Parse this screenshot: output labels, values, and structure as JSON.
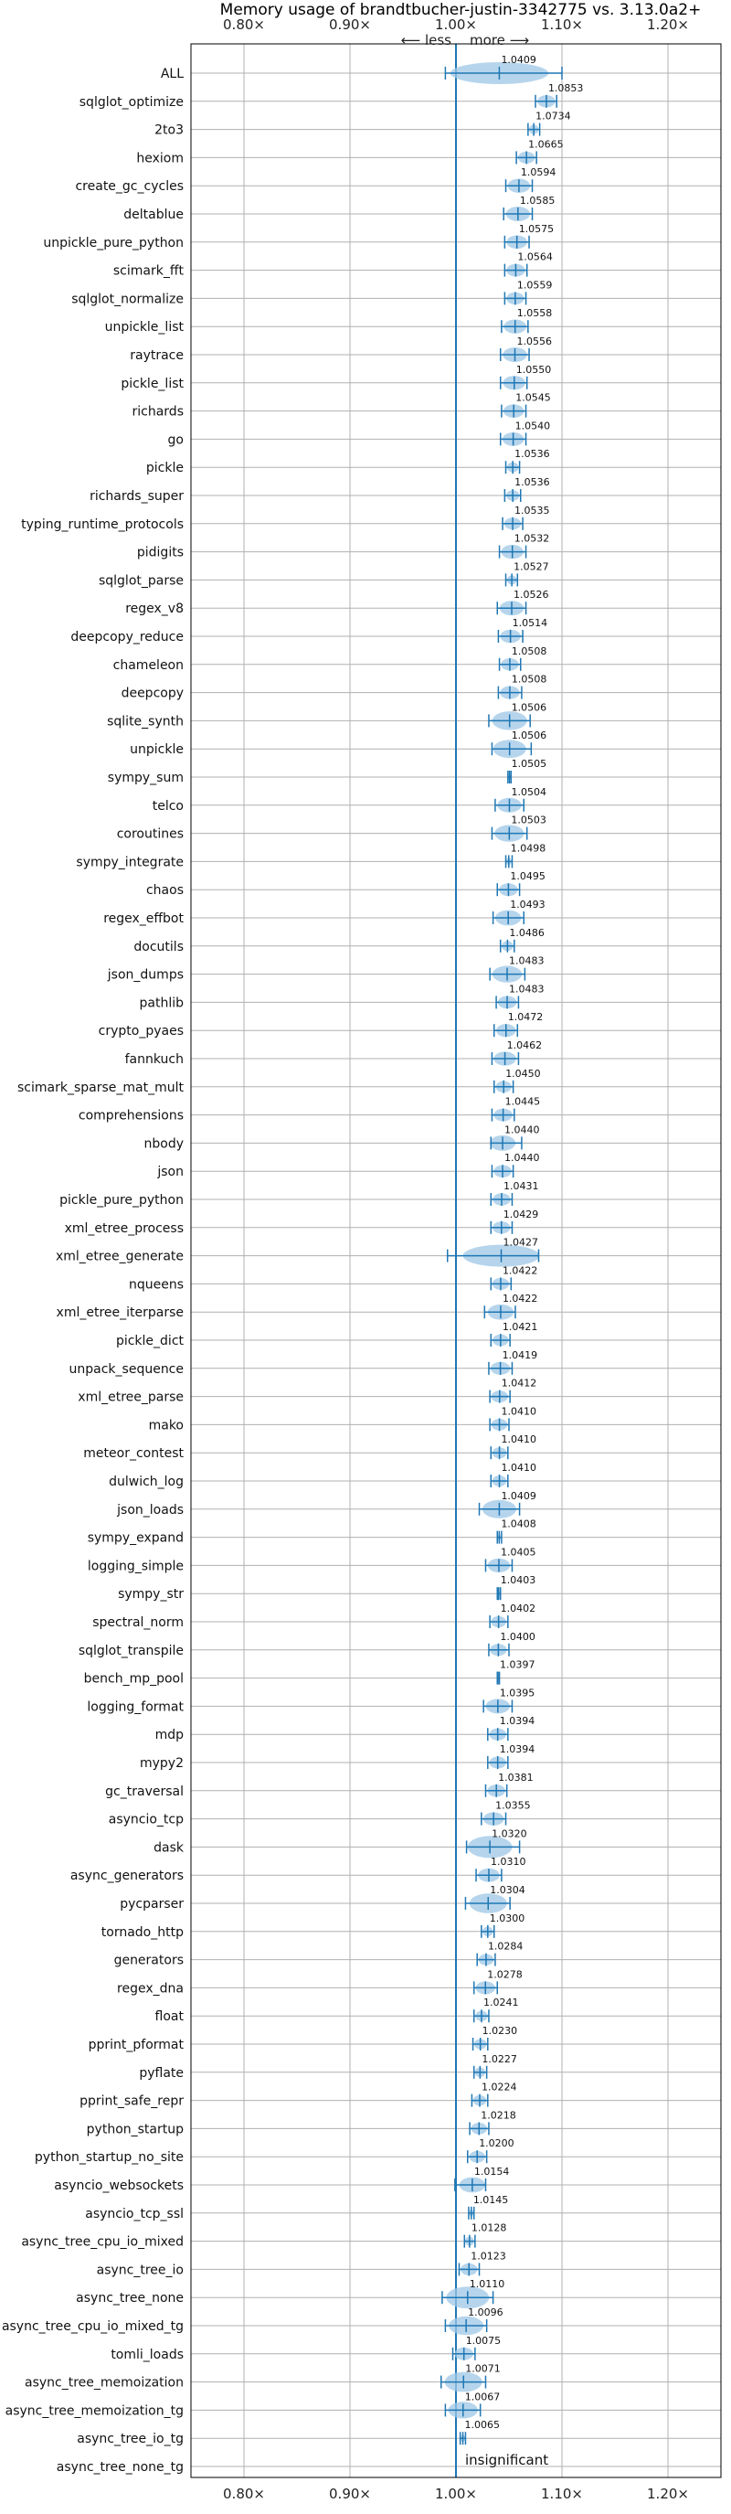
{
  "chart_data": {
    "type": "violin",
    "title": "Memory usage of brandtbucher-justin-3342775 vs. 3.13.0a2+",
    "xlabel": "",
    "ylabel": "",
    "xlim": [
      0.75,
      1.25
    ],
    "xticks": [
      0.8,
      0.9,
      1.0,
      1.1,
      1.2
    ],
    "xtick_labels": [
      "0.80×",
      "0.90×",
      "1.00×",
      "1.10×",
      "1.20×"
    ],
    "annotation_less": "⟵ less",
    "annotation_more": "more ⟶",
    "insignificant_label": "insignificant",
    "grid": true,
    "reference_line": 1.0,
    "colors": {
      "line": "#1f77b4",
      "violin": "#9ec7e5"
    },
    "categories": [
      "ALL",
      "sqlglot_optimize",
      "2to3",
      "hexiom",
      "create_gc_cycles",
      "deltablue",
      "unpickle_pure_python",
      "scimark_fft",
      "sqlglot_normalize",
      "unpickle_list",
      "raytrace",
      "pickle_list",
      "richards",
      "go",
      "pickle",
      "richards_super",
      "typing_runtime_protocols",
      "pidigits",
      "sqlglot_parse",
      "regex_v8",
      "deepcopy_reduce",
      "chameleon",
      "deepcopy",
      "sqlite_synth",
      "unpickle",
      "sympy_sum",
      "telco",
      "coroutines",
      "sympy_integrate",
      "chaos",
      "regex_effbot",
      "docutils",
      "json_dumps",
      "pathlib",
      "crypto_pyaes",
      "fannkuch",
      "scimark_sparse_mat_mult",
      "comprehensions",
      "nbody",
      "json",
      "pickle_pure_python",
      "xml_etree_process",
      "xml_etree_generate",
      "nqueens",
      "xml_etree_iterparse",
      "pickle_dict",
      "unpack_sequence",
      "xml_etree_parse",
      "mako",
      "meteor_contest",
      "dulwich_log",
      "json_loads",
      "sympy_expand",
      "logging_simple",
      "sympy_str",
      "spectral_norm",
      "sqlglot_transpile",
      "bench_mp_pool",
      "logging_format",
      "mdp",
      "mypy2",
      "gc_traversal",
      "asyncio_tcp",
      "dask",
      "async_generators",
      "pycparser",
      "tornado_http",
      "generators",
      "regex_dna",
      "float",
      "pprint_pformat",
      "pyflate",
      "pprint_safe_repr",
      "python_startup",
      "python_startup_no_site",
      "asyncio_websockets",
      "asyncio_tcp_ssl",
      "async_tree_cpu_io_mixed",
      "async_tree_io",
      "async_tree_none",
      "async_tree_cpu_io_mixed_tg",
      "tomli_loads",
      "async_tree_memoization",
      "async_tree_memoization_tg",
      "async_tree_io_tg",
      "async_tree_none_tg"
    ],
    "values": [
      1.0409,
      1.0853,
      1.0734,
      1.0665,
      1.0594,
      1.0585,
      1.0575,
      1.0564,
      1.0559,
      1.0558,
      1.0556,
      1.055,
      1.0545,
      1.054,
      1.0536,
      1.0536,
      1.0535,
      1.0532,
      1.0527,
      1.0526,
      1.0514,
      1.0508,
      1.0508,
      1.0506,
      1.0506,
      1.0505,
      1.0504,
      1.0503,
      1.0498,
      1.0495,
      1.0493,
      1.0486,
      1.0483,
      1.0483,
      1.0472,
      1.0462,
      1.045,
      1.0445,
      1.044,
      1.044,
      1.0431,
      1.0429,
      1.0427,
      1.0422,
      1.0422,
      1.0421,
      1.0419,
      1.0412,
      1.041,
      1.041,
      1.041,
      1.0409,
      1.0408,
      1.0405,
      1.0403,
      1.0402,
      1.04,
      1.0397,
      1.0395,
      1.0394,
      1.0394,
      1.0381,
      1.0355,
      1.032,
      1.031,
      1.0304,
      1.03,
      1.0284,
      1.0278,
      1.0241,
      1.023,
      1.0227,
      1.0224,
      1.0218,
      1.02,
      1.0154,
      1.0145,
      1.0128,
      1.0123,
      1.011,
      1.0096,
      1.0075,
      1.0071,
      1.0067,
      1.0065,
      null
    ],
    "value_labels": [
      "1.0409",
      "1.0853",
      "1.0734",
      "1.0665",
      "1.0594",
      "1.0585",
      "1.0575",
      "1.0564",
      "1.0559",
      "1.0558",
      "1.0556",
      "1.0550",
      "1.0545",
      "1.0540",
      "1.0536",
      "1.0536",
      "1.0535",
      "1.0532",
      "1.0527",
      "1.0526",
      "1.0514",
      "1.0508",
      "1.0508",
      "1.0506",
      "1.0506",
      "1.0505",
      "1.0504",
      "1.0503",
      "1.0498",
      "1.0495",
      "1.0493",
      "1.0486",
      "1.0483",
      "1.0483",
      "1.0472",
      "1.0462",
      "1.0450",
      "1.0445",
      "1.0440",
      "1.0440",
      "1.0431",
      "1.0429",
      "1.0427",
      "1.0422",
      "1.0422",
      "1.0421",
      "1.0419",
      "1.0412",
      "1.0410",
      "1.0410",
      "1.0410",
      "1.0409",
      "1.0408",
      "1.0405",
      "1.0403",
      "1.0402",
      "1.0400",
      "1.0397",
      "1.0395",
      "1.0394",
      "1.0394",
      "1.0381",
      "1.0355",
      "1.0320",
      "1.0310",
      "1.0304",
      "1.0300",
      "1.0284",
      "1.0278",
      "1.0241",
      "1.0230",
      "1.0227",
      "1.0224",
      "1.0218",
      "1.0200",
      "1.0154",
      "1.0145",
      "1.0128",
      "1.0123",
      "1.0110",
      "1.0096",
      "1.0075",
      "1.0071",
      "1.0067",
      "1.0065",
      ""
    ],
    "ranges": [
      [
        0.99,
        1.1
      ],
      [
        1.075,
        1.095
      ],
      [
        1.068,
        1.079
      ],
      [
        1.057,
        1.076
      ],
      [
        1.047,
        1.072
      ],
      [
        1.045,
        1.072
      ],
      [
        1.046,
        1.069
      ],
      [
        1.046,
        1.067
      ],
      [
        1.046,
        1.066
      ],
      [
        1.043,
        1.068
      ],
      [
        1.042,
        1.069
      ],
      [
        1.042,
        1.067
      ],
      [
        1.043,
        1.066
      ],
      [
        1.042,
        1.066
      ],
      [
        1.047,
        1.06
      ],
      [
        1.046,
        1.061
      ],
      [
        1.044,
        1.063
      ],
      [
        1.041,
        1.066
      ],
      [
        1.047,
        1.058
      ],
      [
        1.039,
        1.066
      ],
      [
        1.04,
        1.063
      ],
      [
        1.041,
        1.061
      ],
      [
        1.04,
        1.062
      ],
      [
        1.031,
        1.07
      ],
      [
        1.034,
        1.071
      ],
      [
        1.049,
        1.052
      ],
      [
        1.037,
        1.064
      ],
      [
        1.034,
        1.067
      ],
      [
        1.047,
        1.053
      ],
      [
        1.039,
        1.06
      ],
      [
        1.035,
        1.064
      ],
      [
        1.042,
        1.055
      ],
      [
        1.032,
        1.065
      ],
      [
        1.038,
        1.059
      ],
      [
        1.036,
        1.058
      ],
      [
        1.034,
        1.059
      ],
      [
        1.036,
        1.054
      ],
      [
        1.034,
        1.055
      ],
      [
        1.033,
        1.062
      ],
      [
        1.034,
        1.054
      ],
      [
        1.033,
        1.053
      ],
      [
        1.033,
        1.053
      ],
      [
        0.992,
        1.078
      ],
      [
        1.033,
        1.052
      ],
      [
        1.027,
        1.056
      ],
      [
        1.033,
        1.051
      ],
      [
        1.031,
        1.053
      ],
      [
        1.032,
        1.051
      ],
      [
        1.032,
        1.05
      ],
      [
        1.033,
        1.049
      ],
      [
        1.033,
        1.049
      ],
      [
        1.022,
        1.06
      ],
      [
        1.039,
        1.043
      ],
      [
        1.028,
        1.053
      ],
      [
        1.039,
        1.042
      ],
      [
        1.032,
        1.049
      ],
      [
        1.031,
        1.05
      ],
      [
        1.039,
        1.041
      ],
      [
        1.026,
        1.053
      ],
      [
        1.03,
        1.049
      ],
      [
        1.03,
        1.049
      ],
      [
        1.028,
        1.048
      ],
      [
        1.024,
        1.047
      ],
      [
        1.01,
        1.06
      ],
      [
        1.019,
        1.043
      ],
      [
        1.009,
        1.051
      ],
      [
        1.024,
        1.036
      ],
      [
        1.02,
        1.037
      ],
      [
        1.017,
        1.039
      ],
      [
        1.017,
        1.031
      ],
      [
        1.016,
        1.03
      ],
      [
        1.017,
        1.029
      ],
      [
        1.015,
        1.03
      ],
      [
        1.013,
        1.031
      ],
      [
        1.011,
        1.029
      ],
      [
        0.999,
        1.028
      ],
      [
        1.012,
        1.017
      ],
      [
        1.008,
        1.018
      ],
      [
        1.003,
        1.022
      ],
      [
        0.987,
        1.035
      ],
      [
        0.99,
        1.029
      ],
      [
        0.997,
        1.018
      ],
      [
        0.986,
        1.028
      ],
      [
        0.99,
        1.023
      ],
      [
        1.004,
        1.009
      ],
      null
    ]
  }
}
